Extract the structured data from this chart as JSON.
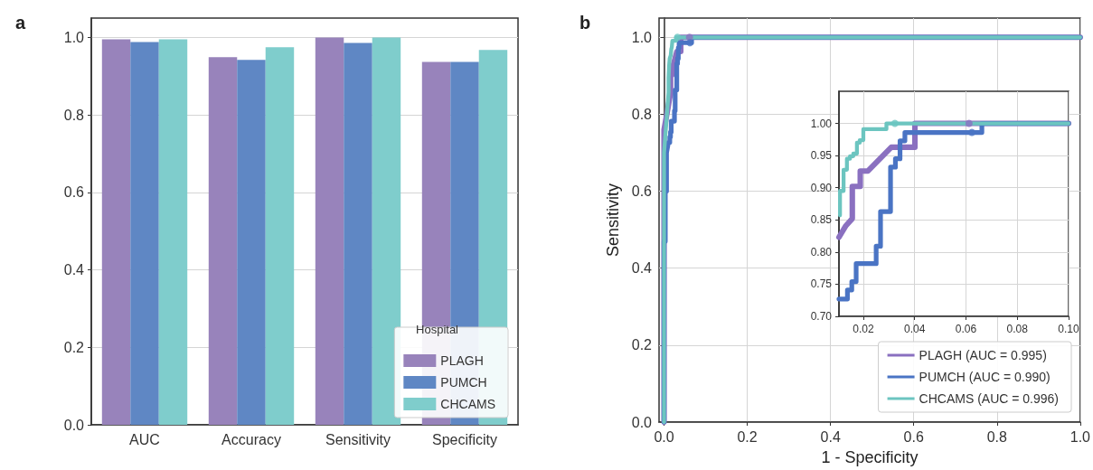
{
  "chart_data": [
    {
      "type": "bar",
      "annotations": [
        "a"
      ],
      "categories": [
        "AUC",
        "Accuracy",
        "Sensitivity",
        "Specificity"
      ],
      "legend_title": "Hospital",
      "legend": "bottom right",
      "grid": "y",
      "ylim": [
        0,
        1.05
      ],
      "yticks": [
        {
          "value": 0,
          "label": "0.0"
        },
        {
          "value": 0.2,
          "label": "0.2"
        },
        {
          "value": 0.4,
          "label": "0.4"
        },
        {
          "value": 0.6,
          "label": "0.6"
        },
        {
          "value": 0.8,
          "label": "0.8"
        },
        {
          "value": 1,
          "label": "1.0"
        }
      ],
      "series": [
        {
          "name": "PLAGH",
          "color": "#9883bb",
          "values": [
            0.995,
            0.949,
            1.0,
            0.937
          ]
        },
        {
          "name": "PUMCH",
          "color": "#5f87c4",
          "values": [
            0.988,
            0.942,
            0.986,
            0.937
          ]
        },
        {
          "name": "CHCAMS",
          "color": "#7fcdcc",
          "values": [
            0.995,
            0.975,
            1.0,
            0.968
          ]
        }
      ]
    },
    {
      "type": "line",
      "annotations": [
        "b"
      ],
      "xlabel": "1 - Specificity",
      "ylabel": "Sensitivity",
      "legend": "bottom right",
      "grid": true,
      "xlim": [
        -0.012,
        1
      ],
      "ylim": [
        0,
        1.05
      ],
      "xticks": [
        {
          "value": 0,
          "label": "0.0"
        },
        {
          "value": 0.2,
          "label": "0.2"
        },
        {
          "value": 0.4,
          "label": "0.4"
        },
        {
          "value": 0.6,
          "label": "0.6"
        },
        {
          "value": 0.8,
          "label": "0.8"
        },
        {
          "value": 1,
          "label": "1.0"
        }
      ],
      "yticks": [
        {
          "value": 0,
          "label": "0.0"
        },
        {
          "value": 0.2,
          "label": "0.2"
        },
        {
          "value": 0.4,
          "label": "0.4"
        },
        {
          "value": 0.6,
          "label": "0.6"
        },
        {
          "value": 0.8,
          "label": "0.8"
        },
        {
          "value": 1,
          "label": "1.0"
        }
      ],
      "series": [
        {
          "name": "PLAGH (AUC = 0.995)",
          "marker": "none",
          "color": "#8a70c0",
          "x": [
            0,
            0,
            0.0105,
            0.0132,
            0.0157,
            0.0157,
            0.0188,
            0.0188,
            0.0218,
            0.0309,
            0.0401,
            0.0401,
            1
          ],
          "values": [
            0,
            0.76,
            0.823,
            0.841,
            0.852,
            0.902,
            0.902,
            0.926,
            0.926,
            0.963,
            0.963,
            1.0,
            1.0
          ]
        },
        {
          "name": "PUMCH (AUC = 0.990)",
          "marker": "none",
          "color": "#4a74c4",
          "x": [
            0,
            0,
            0.003,
            0.003,
            0.006,
            0.006,
            0.0105,
            0.0138,
            0.0138,
            0.0155,
            0.0155,
            0.0172,
            0.0172,
            0.025,
            0.025,
            0.0267,
            0.0267,
            0.0306,
            0.0306,
            0.0325,
            0.0325,
            0.0343,
            0.0343,
            0.0362,
            0.0362,
            0.0662,
            0.0662,
            1
          ],
          "values": [
            0,
            0.47,
            0.47,
            0.6,
            0.6,
            0.7,
            0.727,
            0.727,
            0.741,
            0.741,
            0.754,
            0.754,
            0.782,
            0.782,
            0.809,
            0.809,
            0.863,
            0.863,
            0.932,
            0.932,
            0.945,
            0.945,
            0.973,
            0.973,
            0.986,
            0.986,
            1.0,
            1.0
          ]
        },
        {
          "name": "CHCAMS (AUC = 0.996)",
          "marker": "none",
          "color": "#6cc5c0",
          "x": [
            0,
            0,
            0.0109,
            0.0109,
            0.0123,
            0.0123,
            0.0136,
            0.0136,
            0.0148,
            0.0148,
            0.0161,
            0.0161,
            0.0175,
            0.0175,
            0.0186,
            0.0186,
            0.02,
            0.02,
            0.029,
            0.029,
            1
          ],
          "values": [
            0,
            0.7,
            0.857,
            0.895,
            0.895,
            0.928,
            0.928,
            0.945,
            0.945,
            0.949,
            0.949,
            0.953,
            0.953,
            0.97,
            0.97,
            0.974,
            0.974,
            0.991,
            0.991,
            1.0,
            1.0
          ]
        },
        {
          "type": "scatter",
          "marker": "circle",
          "color": "#8a70c0",
          "x": [
            0.0612
          ],
          "values": [
            1.0
          ]
        },
        {
          "type": "scatter",
          "marker": "circle",
          "color": "#4a74c4",
          "x": [
            0.0623
          ],
          "values": [
            0.986
          ]
        },
        {
          "type": "scatter",
          "marker": "circle",
          "color": "#6cc5c0",
          "x": [
            0.0323
          ],
          "values": [
            1.0
          ]
        }
      ]
    },
    {
      "type": "line",
      "grid": true,
      "xlim": [
        0.0105,
        0.1
      ],
      "ylim": [
        0.7,
        1.05
      ],
      "xticks": [
        {
          "value": 0.02,
          "label": "0.02"
        },
        {
          "value": 0.04,
          "label": "0.04"
        },
        {
          "value": 0.06,
          "label": "0.06"
        },
        {
          "value": 0.08,
          "label": "0.08"
        },
        {
          "value": 0.1,
          "label": "0.10"
        }
      ],
      "yticks": [
        {
          "value": 0.7,
          "label": "0.70"
        },
        {
          "value": 0.75,
          "label": "0.75"
        },
        {
          "value": 0.8,
          "label": "0.80"
        },
        {
          "value": 0.85,
          "label": "0.85"
        },
        {
          "value": 0.9,
          "label": "0.90"
        },
        {
          "value": 0.95,
          "label": "0.95"
        },
        {
          "value": 1,
          "label": "1.00"
        }
      ],
      "series": [
        {
          "marker": "none",
          "color": "#8a70c0",
          "x": [
            0.0105,
            0.0132,
            0.0157,
            0.0157,
            0.0188,
            0.0188,
            0.0218,
            0.0309,
            0.0401,
            0.0401,
            0.1
          ],
          "values": [
            0.823,
            0.841,
            0.852,
            0.902,
            0.902,
            0.926,
            0.926,
            0.963,
            0.963,
            1.0,
            1.0
          ]
        },
        {
          "marker": "none",
          "color": "#4a74c4",
          "x": [
            0.0105,
            0.0138,
            0.0138,
            0.0155,
            0.0155,
            0.0172,
            0.0172,
            0.025,
            0.025,
            0.0267,
            0.0267,
            0.0306,
            0.0306,
            0.0325,
            0.0325,
            0.0343,
            0.0343,
            0.0362,
            0.0362,
            0.0662,
            0.0662,
            0.1
          ],
          "values": [
            0.727,
            0.727,
            0.741,
            0.741,
            0.754,
            0.754,
            0.782,
            0.782,
            0.809,
            0.809,
            0.863,
            0.863,
            0.932,
            0.932,
            0.945,
            0.945,
            0.973,
            0.973,
            0.986,
            0.986,
            1.0,
            1.0
          ]
        },
        {
          "marker": "none",
          "color": "#6cc5c0",
          "x": [
            0.0109,
            0.0109,
            0.0123,
            0.0123,
            0.0136,
            0.0136,
            0.0148,
            0.0148,
            0.0161,
            0.0161,
            0.0175,
            0.0175,
            0.0186,
            0.0186,
            0.02,
            0.02,
            0.029,
            0.029,
            0.1
          ],
          "values": [
            0.857,
            0.895,
            0.895,
            0.928,
            0.928,
            0.945,
            0.945,
            0.949,
            0.949,
            0.953,
            0.953,
            0.97,
            0.97,
            0.974,
            0.974,
            0.991,
            0.991,
            1.0,
            1.0
          ]
        },
        {
          "type": "scatter",
          "marker": "circle",
          "color": "#8a70c0",
          "x": [
            0.0612
          ],
          "values": [
            1.0
          ]
        },
        {
          "type": "scatter",
          "marker": "circle",
          "color": "#4a74c4",
          "x": [
            0.0623
          ],
          "values": [
            0.986
          ]
        },
        {
          "type": "scatter",
          "marker": "circle",
          "color": "#6cc5c0",
          "x": [
            0.0323
          ],
          "values": [
            1.0
          ]
        }
      ]
    }
  ]
}
